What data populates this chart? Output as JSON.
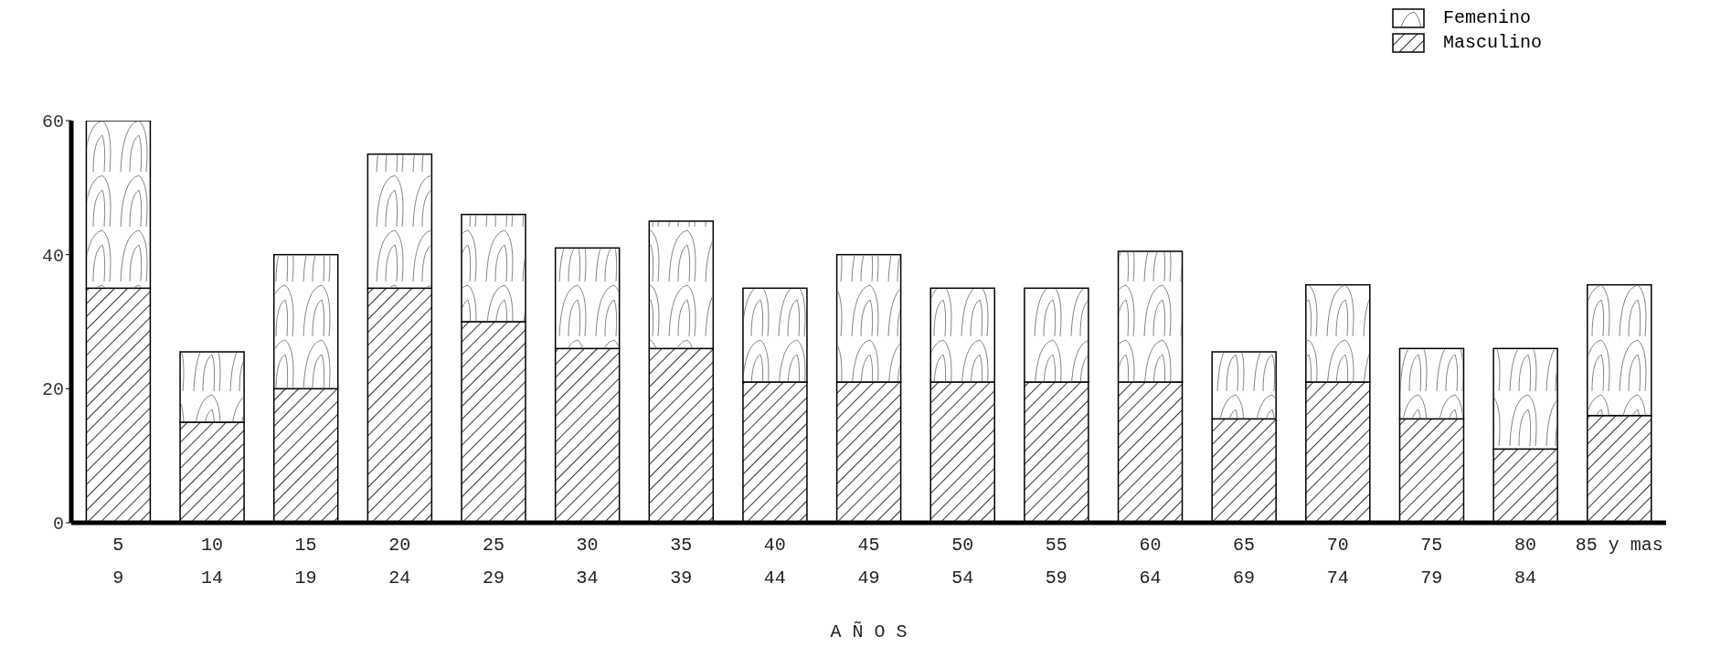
{
  "chart_data": {
    "type": "bar",
    "stacked": true,
    "xlabel": "A Ñ O S",
    "categories": [
      "5\n9",
      "10\n14",
      "15\n19",
      "20\n24",
      "25\n29",
      "30\n34",
      "35\n39",
      "40\n44",
      "45\n49",
      "50\n54",
      "55\n59",
      "60\n64",
      "65\n69",
      "70\n74",
      "75\n79",
      "80\n84",
      "85 y mas"
    ],
    "series": [
      {
        "name": "Masculino",
        "color": "#000000",
        "values": [
          35,
          15,
          20,
          35,
          30,
          26,
          26,
          21,
          21,
          21,
          21,
          21,
          15.5,
          21,
          15.5,
          11,
          16
        ]
      },
      {
        "name": "Femenino",
        "color": "#ffffff",
        "values": [
          25,
          10.5,
          20,
          20,
          16,
          15,
          19,
          14,
          19,
          14,
          14,
          19.5,
          10,
          14.5,
          10.5,
          15,
          19.5
        ]
      }
    ],
    "ylim": [
      0,
      60
    ],
    "yticks": [
      0,
      20,
      40,
      60
    ],
    "legend": "top right",
    "grid": false
  }
}
